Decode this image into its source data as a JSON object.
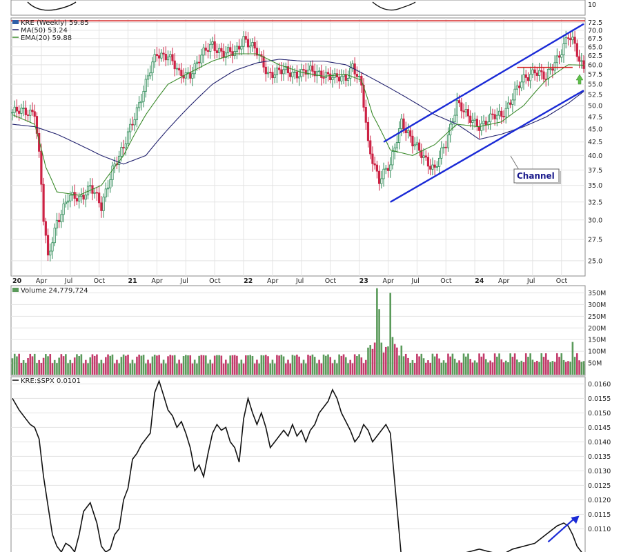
{
  "colors": {
    "up": "#2e8b57",
    "down": "#cc2244",
    "ma50": "#22226e",
    "ema20": "#3a8a2a",
    "channel": "#1a2ad6",
    "resistance": "#d42020",
    "volume_up": "#5a9a5a",
    "volume_down": "#c23a6a",
    "ratio": "#111111",
    "grid": "#e3e3e3"
  },
  "chart_data": [
    {
      "type": "line",
      "panel": "price",
      "title": "KRE (Weekly) 59.85",
      "scale": "log",
      "ylim": [
        23.5,
        73.5
      ],
      "y_ticks": [
        "72.5",
        "70.0",
        "67.5",
        "65.0",
        "62.5",
        "60.0",
        "57.5",
        "55.0",
        "52.5",
        "50.0",
        "47.5",
        "45.0",
        "42.5",
        "40.0",
        "37.5",
        "35.0",
        "32.5",
        "30.0",
        "27.5",
        "25.0"
      ],
      "x_ticks": [
        "20",
        "Apr",
        "Jul",
        "Oct",
        "21",
        "Apr",
        "Jul",
        "Oct",
        "22",
        "Apr",
        "Jul",
        "Oct",
        "23",
        "Apr",
        "Jul",
        "Oct",
        "24",
        "Apr",
        "Jul",
        "Oct"
      ],
      "x_ticks_pos": [
        0,
        13,
        26,
        39,
        52,
        65,
        78,
        91,
        104,
        117,
        130,
        143,
        156,
        169,
        182,
        195,
        208,
        221,
        234,
        247
      ],
      "weeks": 257,
      "grid": true,
      "legend_position": "top-left",
      "series": [
        {
          "name": "KRE (Weekly) 59.85",
          "kind": "ohlc",
          "x": [
            0,
            5,
            10,
            12,
            14,
            16,
            20,
            25,
            30,
            35,
            40,
            45,
            50,
            55,
            60,
            65,
            70,
            75,
            80,
            90,
            95,
            100,
            104,
            110,
            115,
            120,
            125,
            130,
            140,
            145,
            150,
            153,
            157,
            160,
            165,
            170,
            175,
            180,
            185,
            190,
            195,
            200,
            205,
            210,
            215,
            220,
            230,
            235,
            240,
            245,
            250,
            253,
            255,
            257
          ],
          "values": [
            48.5,
            48.5,
            49.0,
            40.0,
            30.0,
            25.0,
            30.0,
            33.0,
            33.0,
            35.0,
            31.5,
            38.0,
            41.0,
            48.0,
            55.0,
            63.0,
            63.0,
            57.0,
            58.0,
            66.0,
            63.0,
            63.0,
            68.0,
            63.0,
            58.0,
            58.0,
            58.0,
            58.0,
            58.0,
            56.0,
            57.0,
            60.0,
            54.0,
            42.0,
            36.0,
            38.0,
            47.0,
            42.0,
            40.0,
            37.5,
            42.0,
            51.0,
            47.0,
            46.0,
            47.0,
            48.0,
            56.0,
            59.0,
            56.0,
            62.0,
            68.0,
            65.0,
            61.0,
            59.85
          ]
        },
        {
          "name": "MA(50) 53.24",
          "x": [
            0,
            10,
            20,
            30,
            40,
            50,
            60,
            70,
            80,
            90,
            100,
            110,
            120,
            130,
            140,
            150,
            160,
            170,
            180,
            190,
            200,
            210,
            220,
            230,
            240,
            250,
            257
          ],
          "values": [
            46.0,
            45.5,
            44.0,
            42.0,
            40.0,
            38.5,
            40.0,
            45.0,
            50.0,
            55.0,
            58.5,
            60.5,
            61.5,
            61.0,
            61.0,
            60.0,
            57.0,
            54.0,
            51.0,
            48.0,
            46.0,
            43.0,
            44.0,
            45.5,
            47.5,
            50.5,
            53.24
          ]
        },
        {
          "name": "EMA(20) 59.88",
          "x": [
            0,
            10,
            15,
            20,
            30,
            40,
            50,
            60,
            70,
            80,
            90,
            100,
            110,
            120,
            130,
            140,
            150,
            157,
            162,
            170,
            180,
            190,
            200,
            210,
            220,
            230,
            240,
            250,
            257
          ],
          "values": [
            48.0,
            46.0,
            38.0,
            34.0,
            33.5,
            35.0,
            40.0,
            48.0,
            55.0,
            58.0,
            61.0,
            63.0,
            63.0,
            60.0,
            58.0,
            57.0,
            57.5,
            56.0,
            48.0,
            41.0,
            40.0,
            42.0,
            46.0,
            45.5,
            46.5,
            50.0,
            56.0,
            60.0,
            59.88
          ]
        }
      ],
      "channel_lower": {
        "x": [
          170,
          257
        ],
        "values": [
          32.5,
          53.5
        ]
      },
      "channel_upper": {
        "x": [
          167,
          257
        ],
        "values": [
          42.5,
          72.0
        ]
      },
      "resistance_line": {
        "x": [
          0,
          257
        ],
        "values": [
          73.0,
          73.0
        ]
      },
      "support_line": {
        "x": [
          227,
          252
        ],
        "values": [
          59.3,
          59.3
        ]
      },
      "annotations": [
        {
          "text": "Channel"
        }
      ]
    },
    {
      "type": "bar",
      "panel": "volume",
      "title": "Volume 24,779,724",
      "ylim": [
        0,
        375
      ],
      "y_ticks": [
        "350M",
        "300M",
        "250M",
        "200M",
        "150M",
        "100M",
        "50M"
      ],
      "peaks": {
        "x": [
          164,
          165,
          170,
          252
        ],
        "values": [
          370,
          280,
          350,
          140
        ]
      },
      "base_level_m": 70
    },
    {
      "type": "line",
      "panel": "ratio",
      "title": "KRE:$SPX 0.0101",
      "ylim": [
        0.0102,
        0.0162
      ],
      "y_ticks": [
        "0.0160",
        "0.0155",
        "0.0150",
        "0.0145",
        "0.0140",
        "0.0135",
        "0.0130",
        "0.0125",
        "0.0120",
        "0.0115",
        "0.0110"
      ],
      "series": [
        {
          "name": "KRE:$SPX 0.0101",
          "x": [
            0,
            3,
            6,
            8,
            10,
            12,
            14,
            16,
            18,
            20,
            22,
            24,
            26,
            28,
            30,
            32,
            35,
            38,
            40,
            42,
            44,
            46,
            48,
            50,
            52,
            54,
            56,
            58,
            60,
            62,
            64,
            66,
            68,
            70,
            72,
            74,
            76,
            78,
            80,
            82,
            84,
            86,
            88,
            90,
            92,
            94,
            96,
            98,
            100,
            102,
            104,
            106,
            108,
            110,
            112,
            114,
            116,
            118,
            120,
            122,
            124,
            126,
            128,
            130,
            132,
            134,
            136,
            138,
            140,
            142,
            144,
            146,
            148,
            150,
            152,
            154,
            156,
            158,
            160,
            162,
            164,
            166,
            168,
            170,
            175,
            180,
            190,
            200,
            205,
            210,
            215,
            220,
            225,
            230,
            235,
            240,
            245,
            248,
            250,
            252,
            254,
            257
          ],
          "values": [
            0.0155,
            0.0151,
            0.0148,
            0.0146,
            0.0145,
            0.0141,
            0.0128,
            0.0118,
            0.0108,
            0.0104,
            0.0102,
            0.0105,
            0.0104,
            0.0102,
            0.0108,
            0.0116,
            0.0119,
            0.0112,
            0.0104,
            0.0102,
            0.0103,
            0.0108,
            0.011,
            0.012,
            0.0124,
            0.0134,
            0.0136,
            0.0139,
            0.0141,
            0.0143,
            0.0157,
            0.0161,
            0.0156,
            0.0151,
            0.0149,
            0.0145,
            0.0147,
            0.0143,
            0.0138,
            0.013,
            0.0132,
            0.0128,
            0.0136,
            0.0143,
            0.0146,
            0.0144,
            0.0145,
            0.014,
            0.0138,
            0.0133,
            0.0148,
            0.0155,
            0.015,
            0.0146,
            0.015,
            0.0145,
            0.0138,
            0.014,
            0.0142,
            0.0144,
            0.0142,
            0.0146,
            0.0142,
            0.0144,
            0.014,
            0.0144,
            0.0146,
            0.015,
            0.0152,
            0.0154,
            0.0158,
            0.0155,
            0.015,
            0.0147,
            0.0144,
            0.014,
            0.0142,
            0.0146,
            0.0144,
            0.014,
            0.0142,
            0.0144,
            0.0146,
            0.0143,
            0.01,
            0.0098,
            0.01,
            0.0101,
            0.0102,
            0.0103,
            0.0102,
            0.0101,
            0.0103,
            0.0104,
            0.0105,
            0.0108,
            0.0111,
            0.0112,
            0.0111,
            0.0108,
            0.0104,
            0.0101
          ]
        }
      ],
      "arrow": {
        "x": [
          241,
          255
        ],
        "values": [
          0.01055,
          0.01145
        ]
      }
    }
  ]
}
